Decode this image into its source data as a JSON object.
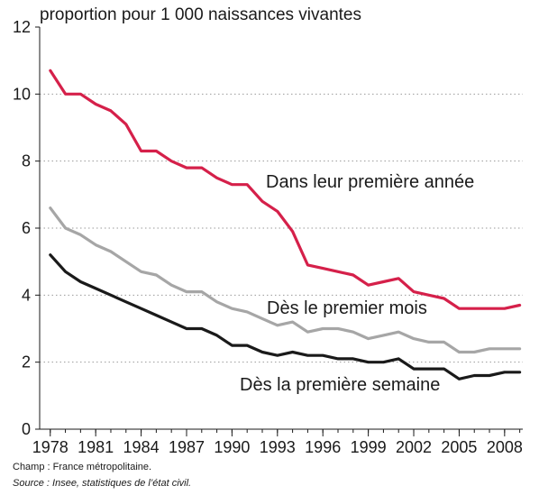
{
  "chart_data": {
    "type": "line",
    "ylabel": "proportion pour 1 000 naissances vivantes",
    "ylim": [
      0,
      12
    ],
    "yticks": [
      0,
      2,
      4,
      6,
      8,
      10,
      12
    ],
    "xlim": [
      1977.3,
      2009.2
    ],
    "xticks": [
      1978,
      1981,
      1984,
      1987,
      1990,
      1993,
      1996,
      1999,
      2002,
      2005,
      2008
    ],
    "xtick_labels": [
      "1978",
      "1981",
      "1984",
      "1987",
      "1990",
      "1993",
      "1996",
      "1999",
      "2002",
      "2005",
      "2008"
    ],
    "grid": "horizontal-dotted",
    "x": [
      1978,
      1979,
      1980,
      1981,
      1982,
      1983,
      1984,
      1985,
      1986,
      1987,
      1988,
      1989,
      1990,
      1991,
      1992,
      1993,
      1994,
      1995,
      1996,
      1997,
      1998,
      1999,
      2000,
      2001,
      2002,
      2003,
      2004,
      2005,
      2006,
      2007,
      2008,
      2009
    ],
    "series": [
      {
        "name": "Dans leur première année",
        "color": "#d5204a",
        "values": [
          10.7,
          10.0,
          10.0,
          9.7,
          9.5,
          9.1,
          8.3,
          8.3,
          8.0,
          7.8,
          7.8,
          7.5,
          7.3,
          7.3,
          6.8,
          6.5,
          5.9,
          4.9,
          4.8,
          4.7,
          4.6,
          4.3,
          4.4,
          4.5,
          4.1,
          4.0,
          3.9,
          3.6,
          3.6,
          3.6,
          3.6,
          3.7
        ]
      },
      {
        "name": "Dès le premier mois",
        "color": "#a6a6a6",
        "values": [
          6.6,
          6.0,
          5.8,
          5.5,
          5.3,
          5.0,
          4.7,
          4.6,
          4.3,
          4.1,
          4.1,
          3.8,
          3.6,
          3.5,
          3.3,
          3.1,
          3.2,
          2.9,
          3.0,
          3.0,
          2.9,
          2.7,
          2.8,
          2.9,
          2.7,
          2.6,
          2.6,
          2.3,
          2.3,
          2.4,
          2.4,
          2.4
        ]
      },
      {
        "name": "Dès la première semaine",
        "color": "#1a1a1a",
        "values": [
          5.2,
          4.7,
          4.4,
          4.2,
          4.0,
          3.8,
          3.6,
          3.4,
          3.2,
          3.0,
          3.0,
          2.8,
          2.5,
          2.5,
          2.3,
          2.2,
          2.3,
          2.2,
          2.2,
          2.1,
          2.1,
          2.0,
          2.0,
          2.1,
          1.8,
          1.8,
          1.8,
          1.5,
          1.6,
          1.6,
          1.7,
          1.7
        ]
      }
    ]
  },
  "footnotes": {
    "champ": "Champ : France métropolitaine.",
    "source": "Source : Insee, statistiques de l’état civil."
  }
}
